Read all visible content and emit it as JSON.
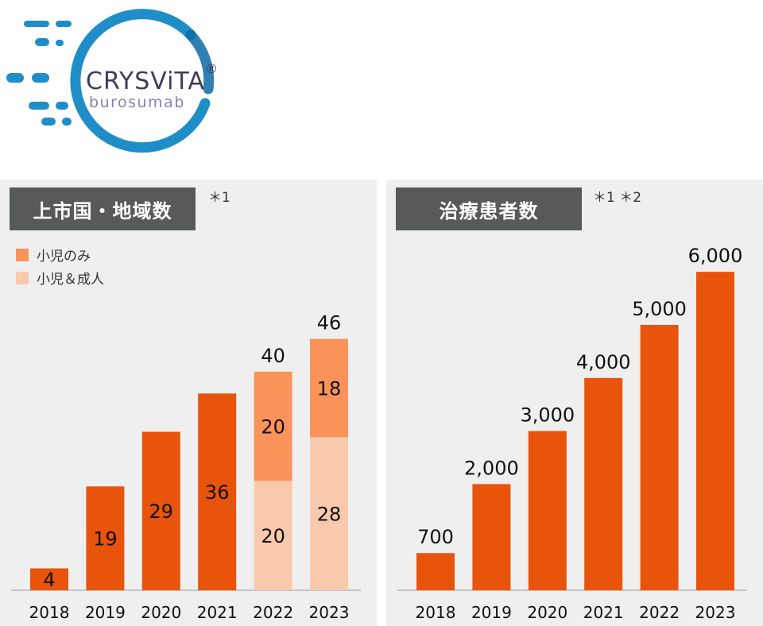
{
  "logo": {
    "name": "CRYSViTA",
    "registered": "®",
    "generic": "burosumab",
    "colors": {
      "ring": "#1f8ec8",
      "ring_dark": "#0d6aa6",
      "name": "#3d3d5c",
      "generic": "#8b7fb3"
    }
  },
  "panels": [
    {
      "title": "上市国・地域数",
      "note": "＊1"
    },
    {
      "title": "治療患者数",
      "note": "＊1 ＊2"
    }
  ],
  "colors": {
    "dark_orange": "#e8540c",
    "mid_orange": "#f9935a",
    "light_peach": "#f8c9ad",
    "axis": "#999999"
  },
  "chart_data": [
    {
      "type": "bar",
      "stacked": true,
      "categories": [
        "2018",
        "2019",
        "2020",
        "2021",
        "2022",
        "2023"
      ],
      "totals": [
        "",
        "",
        "",
        "",
        "40",
        "46"
      ],
      "legend": [
        "小児のみ",
        "小児＆成人"
      ],
      "segments": [
        [
          {
            "value": 4,
            "label": "4",
            "color": "dark"
          }
        ],
        [
          {
            "value": 19,
            "label": "19",
            "color": "dark"
          }
        ],
        [
          {
            "value": 29,
            "label": "29",
            "color": "dark"
          }
        ],
        [
          {
            "value": 36,
            "label": "36",
            "color": "dark"
          }
        ],
        [
          {
            "value": 20,
            "label": "20",
            "color": "light"
          },
          {
            "value": 20,
            "label": "20",
            "color": "mid"
          }
        ],
        [
          {
            "value": 28,
            "label": "28",
            "color": "light"
          },
          {
            "value": 18,
            "label": "18",
            "color": "mid"
          }
        ]
      ]
    },
    {
      "type": "bar",
      "categories": [
        "2018",
        "2019",
        "2020",
        "2021",
        "2022",
        "2023"
      ],
      "values": [
        700,
        2000,
        3000,
        4000,
        5000,
        6000
      ],
      "labels": [
        "700",
        "2,000",
        "3,000",
        "4,000",
        "5,000",
        "6,000"
      ]
    }
  ]
}
